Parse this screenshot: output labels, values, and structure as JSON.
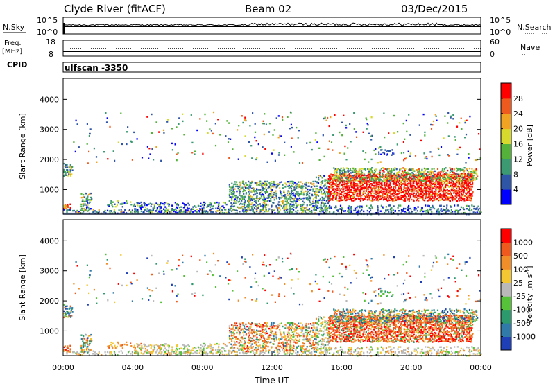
{
  "header": {
    "station": "Clyde River (fitACF)",
    "beam": "Beam 02",
    "date": "03/Dec/2015"
  },
  "status_panels": {
    "nsky_label": "N.Sky",
    "nsky_ticks": [
      "10^5",
      "10^0"
    ],
    "nsearch_label": "N.Search",
    "nsearch_ticks": [
      "10^5",
      "10^0"
    ],
    "freq_label": "Freq.",
    "freq_unit": "[MHz]",
    "freq_ticks": [
      "18",
      "8"
    ],
    "nave_label": "Nave",
    "nave_ticks": [
      "60",
      "0"
    ],
    "cpid_label": "CPID",
    "cpid_value": "ulfscan -3350"
  },
  "chart_data": [
    {
      "type": "heatmap",
      "ylabel": "Slant Range [km]",
      "ylim": [
        180,
        4700
      ],
      "yticks": [
        "4000",
        "3000",
        "2000",
        "1000"
      ],
      "xlim": [
        0,
        24
      ],
      "colorbar": {
        "label": "Power [dB]",
        "ticks": [
          "28",
          "24",
          "20",
          "16",
          "12",
          "8",
          "4"
        ],
        "colors": [
          "#0000ff",
          "#2f56a6",
          "#3b9a72",
          "#54b23a",
          "#d7d92c",
          "#f0a322",
          "#ee5a1e",
          "#ff0000"
        ]
      }
    },
    {
      "type": "heatmap",
      "ylabel": "Slant Range [km]",
      "ylim": [
        180,
        4700
      ],
      "yticks": [
        "4000",
        "3000",
        "2000",
        "1000"
      ],
      "xlabel": "Time UT",
      "xticks": [
        "00:00",
        "04:00",
        "08:00",
        "12:00",
        "16:00",
        "20:00",
        "00:00"
      ],
      "xlim": [
        0,
        24
      ],
      "colorbar": {
        "label": "Velocity",
        "unit": "[m s",
        "unit_exp": "-1",
        "unit_end": "]",
        "ticks": [
          "1000",
          "500",
          "100",
          "25",
          "-25",
          "-100",
          "-500",
          "-1000"
        ],
        "colors": [
          "#1f3fb7",
          "#2f7aa8",
          "#2c9a6c",
          "#55c23a",
          "#b9b9b9",
          "#f3c733",
          "#f08f2a",
          "#ee5a1e",
          "#ff0000"
        ]
      }
    }
  ]
}
